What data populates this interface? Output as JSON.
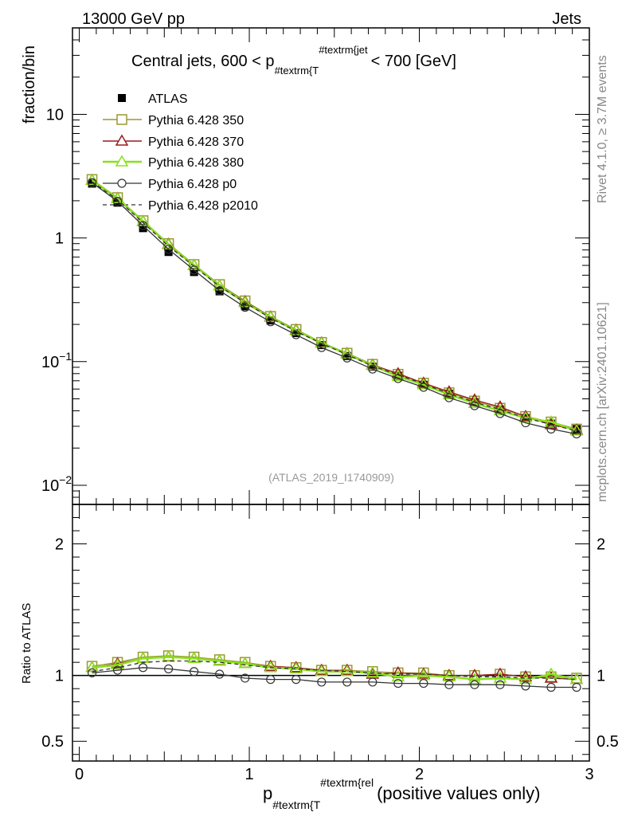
{
  "header": {
    "left": "13000 GeV pp",
    "right": "Jets",
    "side_top": "Rivet 4.1.0, ≥ 3.7M events",
    "side_bottom": "mcplots.cern.ch [arXiv:2401.10621]"
  },
  "chart_data": [
    {
      "type": "line",
      "panel": "main",
      "title_pre": "Central jets, 600 < p",
      "title_sub": "#textrm{T",
      "title_sup": "#textrm{jet",
      "title_post": "< 700 [GeV]",
      "ylabel": "fraction/bin",
      "yscale": "log",
      "ylim": [
        0.007,
        50
      ],
      "xlim": [
        -0.04,
        3.0
      ],
      "yticks": [
        {
          "value": 10,
          "label": "10"
        },
        {
          "value": 1,
          "label": "1"
        },
        {
          "value": 0.1,
          "label": "10",
          "sup": "−1"
        },
        {
          "value": 0.01,
          "label": "10",
          "sup": "−2"
        }
      ],
      "watermark": "(ATLAS_2019_I1740909)",
      "x": [
        0.075,
        0.225,
        0.375,
        0.525,
        0.675,
        0.825,
        0.975,
        1.125,
        1.275,
        1.425,
        1.575,
        1.725,
        1.875,
        2.025,
        2.175,
        2.325,
        2.475,
        2.625,
        2.775,
        2.925
      ],
      "series": [
        {
          "name": "ATLAS",
          "color": "#000000",
          "marker": "filled-square",
          "line": "none",
          "values": [
            2.75,
            1.93,
            1.2,
            0.77,
            0.53,
            0.37,
            0.28,
            0.215,
            0.17,
            0.136,
            0.111,
            0.091,
            0.077,
            0.065,
            0.055,
            0.047,
            0.041,
            0.035,
            0.0315,
            0.0285
          ]
        },
        {
          "name": "Pythia 6.428 350",
          "color": "#999933",
          "marker": "open-square",
          "line": "solid",
          "values": [
            2.97,
            2.12,
            1.38,
            0.9,
            0.61,
            0.42,
            0.31,
            0.232,
            0.182,
            0.143,
            0.117,
            0.095,
            0.079,
            0.067,
            0.056,
            0.048,
            0.042,
            0.036,
            0.0325,
            0.0285
          ]
        },
        {
          "name": "Pythia 6.428 370",
          "color": "#9b1c1c",
          "marker": "open-triangle",
          "line": "solid",
          "values": [
            2.93,
            2.09,
            1.36,
            0.89,
            0.6,
            0.41,
            0.305,
            0.23,
            0.18,
            0.142,
            0.116,
            0.094,
            0.08,
            0.067,
            0.057,
            0.049,
            0.043,
            0.036,
            0.031,
            0.028
          ]
        },
        {
          "name": "Pythia 6.428 380",
          "color": "#88e11c",
          "marker": "open-triangle",
          "line": "solid-thick",
          "values": [
            2.92,
            2.08,
            1.36,
            0.88,
            0.6,
            0.41,
            0.3,
            0.228,
            0.178,
            0.141,
            0.115,
            0.093,
            0.076,
            0.065,
            0.054,
            0.046,
            0.04,
            0.035,
            0.0325,
            0.0275
          ]
        },
        {
          "name": "Pythia 6.428 p0",
          "color": "#333333",
          "marker": "open-circle",
          "line": "solid",
          "values": [
            2.8,
            1.98,
            1.26,
            0.81,
            0.55,
            0.375,
            0.275,
            0.21,
            0.165,
            0.13,
            0.107,
            0.087,
            0.073,
            0.062,
            0.051,
            0.044,
            0.038,
            0.032,
            0.0285,
            0.026
          ]
        },
        {
          "name": "Pythia 6.428 p2010",
          "color": "#333333",
          "marker": "none",
          "line": "dashed",
          "values": [
            2.85,
            2.04,
            1.33,
            0.86,
            0.59,
            0.405,
            0.3,
            0.225,
            0.176,
            0.14,
            0.114,
            0.092,
            0.078,
            0.066,
            0.055,
            0.047,
            0.041,
            0.035,
            0.031,
            0.0275
          ]
        }
      ]
    },
    {
      "type": "line",
      "panel": "ratio",
      "ylabel": "Ratio to ATLAS",
      "ylim": [
        0.35,
        2.3
      ],
      "xlim": [
        -0.04,
        3.0
      ],
      "yticks": [
        {
          "value": 2,
          "label": "2"
        },
        {
          "value": 1,
          "label": "1"
        },
        {
          "value": 0.5,
          "label": "0.5"
        }
      ],
      "xticks": [
        {
          "value": 0,
          "label": "0"
        },
        {
          "value": 1,
          "label": "1"
        },
        {
          "value": 2,
          "label": "2"
        },
        {
          "value": 3,
          "label": "3"
        }
      ],
      "xlabel_pre": "p",
      "xlabel_sub": "#textrm{T",
      "xlabel_sup": "#textrm{rel",
      "xlabel_post": "(positive values only)",
      "x": [
        0.075,
        0.225,
        0.375,
        0.525,
        0.675,
        0.825,
        0.975,
        1.125,
        1.275,
        1.425,
        1.575,
        1.725,
        1.875,
        2.025,
        2.175,
        2.325,
        2.475,
        2.625,
        2.775,
        2.925
      ],
      "series": [
        {
          "name": "Pythia 6.428 350",
          "color": "#999933",
          "marker": "open-square",
          "line": "solid",
          "values": [
            1.07,
            1.1,
            1.14,
            1.15,
            1.14,
            1.12,
            1.1,
            1.07,
            1.06,
            1.04,
            1.04,
            1.03,
            1.02,
            1.02,
            1.0,
            1.0,
            1.01,
            0.99,
            0.99,
            0.98
          ]
        },
        {
          "name": "Pythia 6.428 370",
          "color": "#9b1c1c",
          "marker": "open-triangle",
          "line": "solid",
          "values": [
            1.06,
            1.09,
            1.13,
            1.14,
            1.13,
            1.11,
            1.09,
            1.07,
            1.06,
            1.04,
            1.04,
            1.01,
            1.02,
            1.01,
            1.0,
            1.0,
            1.01,
            0.99,
            0.98,
            0.97
          ]
        },
        {
          "name": "Pythia 6.428 380",
          "color": "#88e11c",
          "marker": "open-triangle",
          "line": "solid-thick",
          "values": [
            1.06,
            1.08,
            1.13,
            1.14,
            1.13,
            1.11,
            1.09,
            1.06,
            1.05,
            1.03,
            1.03,
            1.02,
            0.99,
            1.0,
            0.99,
            0.97,
            0.98,
            0.97,
            1.01,
            0.97
          ]
        },
        {
          "name": "Pythia 6.428 p0",
          "color": "#333333",
          "marker": "open-circle",
          "line": "solid",
          "values": [
            1.02,
            1.04,
            1.06,
            1.05,
            1.03,
            1.01,
            0.98,
            0.97,
            0.97,
            0.95,
            0.95,
            0.95,
            0.94,
            0.94,
            0.93,
            0.93,
            0.93,
            0.92,
            0.91,
            0.91
          ]
        },
        {
          "name": "Pythia 6.428 p2010",
          "color": "#333333",
          "marker": "none",
          "line": "dashed",
          "values": [
            1.03,
            1.06,
            1.1,
            1.11,
            1.11,
            1.1,
            1.08,
            1.06,
            1.05,
            1.04,
            1.03,
            1.02,
            1.01,
            1.01,
            1.0,
            0.99,
            0.99,
            0.98,
            0.98,
            0.97
          ]
        }
      ]
    }
  ]
}
